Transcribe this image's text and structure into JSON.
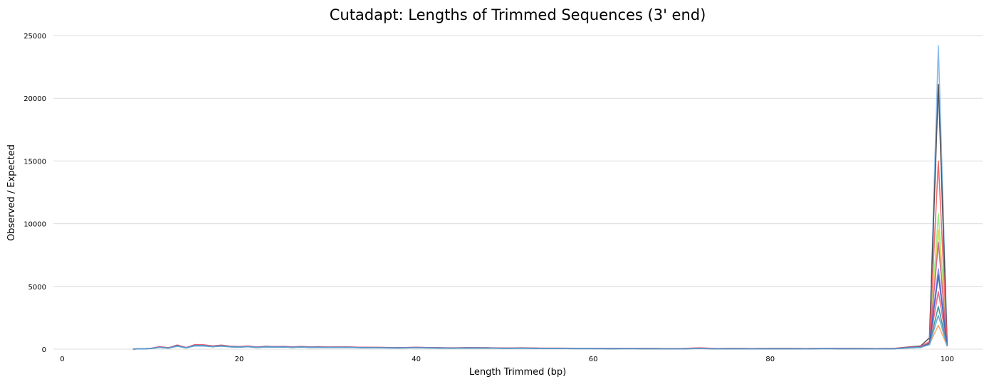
{
  "chart_data": {
    "type": "line",
    "title": "Cutadapt: Lengths of Trimmed Sequences (3' end)",
    "xlabel": "Length Trimmed (bp)",
    "ylabel": "Observed / Expected",
    "xlim": [
      -1,
      104
    ],
    "ylim": [
      0,
      25000
    ],
    "x_ticks": [
      0,
      20,
      40,
      60,
      80,
      100
    ],
    "y_ticks": [
      0,
      5000,
      10000,
      15000,
      20000,
      25000
    ],
    "grid": "horizontal",
    "x": [
      8,
      9,
      10,
      11,
      12,
      13,
      14,
      15,
      16,
      17,
      18,
      19,
      20,
      21,
      22,
      23,
      24,
      25,
      26,
      27,
      28,
      29,
      30,
      32,
      34,
      36,
      38,
      40,
      42,
      44,
      46,
      48,
      50,
      52,
      54,
      56,
      58,
      60,
      62,
      64,
      66,
      68,
      70,
      72,
      74,
      76,
      78,
      80,
      82,
      84,
      86,
      88,
      90,
      92,
      94,
      96,
      97,
      98,
      99,
      100
    ],
    "series": [
      {
        "color": "#7cb5ec",
        "values": [
          10,
          30,
          60,
          150,
          90,
          220,
          120,
          250,
          240,
          200,
          230,
          180,
          170,
          200,
          140,
          180,
          160,
          170,
          140,
          160,
          140,
          150,
          130,
          140,
          120,
          110,
          100,
          120,
          100,
          80,
          100,
          90,
          70,
          80,
          60,
          60,
          50,
          50,
          40,
          50,
          40,
          40,
          30,
          60,
          30,
          40,
          30,
          40,
          40,
          30,
          50,
          40,
          40,
          30,
          40,
          150,
          180,
          500,
          24200,
          300
        ]
      },
      {
        "color": "#434348",
        "values": [
          10,
          30,
          60,
          180,
          100,
          300,
          120,
          350,
          330,
          250,
          300,
          220,
          200,
          240,
          160,
          220,
          190,
          210,
          170,
          200,
          170,
          180,
          160,
          170,
          140,
          130,
          110,
          140,
          110,
          90,
          110,
          100,
          80,
          90,
          70,
          70,
          60,
          60,
          50,
          60,
          50,
          40,
          40,
          90,
          40,
          50,
          40,
          50,
          50,
          40,
          60,
          50,
          50,
          40,
          50,
          200,
          250,
          900,
          21100,
          350
        ]
      },
      {
        "color": "#f7a35c",
        "values": [
          10,
          25,
          50,
          160,
          90,
          320,
          110,
          340,
          360,
          220,
          330,
          200,
          190,
          230,
          150,
          210,
          180,
          200,
          160,
          220,
          160,
          190,
          150,
          160,
          130,
          120,
          100,
          130,
          100,
          80,
          100,
          90,
          70,
          80,
          60,
          60,
          50,
          50,
          40,
          50,
          40,
          40,
          30,
          60,
          30,
          40,
          30,
          40,
          40,
          30,
          50,
          40,
          40,
          30,
          40,
          120,
          150,
          400,
          1900,
          250
        ]
      },
      {
        "color": "#90ed7d",
        "values": [
          10,
          25,
          50,
          150,
          80,
          280,
          100,
          300,
          300,
          200,
          280,
          190,
          170,
          210,
          140,
          190,
          170,
          180,
          150,
          180,
          150,
          170,
          140,
          150,
          120,
          110,
          100,
          120,
          100,
          80,
          100,
          90,
          70,
          80,
          60,
          60,
          50,
          50,
          40,
          50,
          40,
          40,
          30,
          60,
          30,
          40,
          30,
          40,
          40,
          30,
          50,
          40,
          40,
          30,
          40,
          130,
          160,
          450,
          10800,
          260
        ]
      },
      {
        "color": "#e4d354",
        "values": [
          10,
          25,
          50,
          150,
          80,
          270,
          100,
          290,
          290,
          200,
          270,
          190,
          170,
          200,
          140,
          190,
          170,
          180,
          150,
          180,
          150,
          160,
          140,
          150,
          120,
          110,
          100,
          120,
          100,
          80,
          100,
          90,
          70,
          80,
          60,
          60,
          50,
          50,
          40,
          50,
          40,
          40,
          30,
          60,
          30,
          40,
          30,
          40,
          40,
          30,
          50,
          40,
          40,
          30,
          40,
          130,
          160,
          430,
          9500,
          250
        ]
      },
      {
        "color": "#f45b5b",
        "values": [
          10,
          30,
          60,
          200,
          110,
          330,
          130,
          360,
          340,
          260,
          320,
          230,
          210,
          250,
          170,
          230,
          200,
          220,
          180,
          210,
          180,
          190,
          170,
          180,
          150,
          140,
          120,
          150,
          120,
          100,
          120,
          110,
          90,
          100,
          80,
          80,
          70,
          70,
          60,
          70,
          60,
          50,
          50,
          100,
          50,
          60,
          50,
          60,
          60,
          50,
          70,
          60,
          60,
          50,
          60,
          170,
          210,
          600,
          15000,
          320
        ]
      },
      {
        "color": "#f15c80",
        "values": [
          10,
          28,
          55,
          170,
          95,
          300,
          115,
          320,
          310,
          230,
          290,
          210,
          190,
          220,
          150,
          200,
          180,
          190,
          160,
          190,
          160,
          170,
          150,
          160,
          130,
          120,
          100,
          130,
          100,
          90,
          100,
          90,
          80,
          90,
          70,
          70,
          60,
          60,
          50,
          60,
          50,
          40,
          40,
          80,
          40,
          50,
          40,
          50,
          50,
          40,
          60,
          50,
          50,
          40,
          50,
          140,
          170,
          480,
          4600,
          280
        ]
      },
      {
        "color": "#2b908f",
        "values": [
          10,
          25,
          50,
          140,
          80,
          260,
          100,
          280,
          280,
          190,
          260,
          180,
          160,
          190,
          130,
          180,
          160,
          170,
          140,
          170,
          140,
          150,
          130,
          140,
          110,
          100,
          90,
          110,
          90,
          70,
          90,
          80,
          60,
          70,
          50,
          50,
          40,
          40,
          30,
          40,
          30,
          30,
          20,
          50,
          20,
          30,
          20,
          30,
          30,
          20,
          40,
          30,
          30,
          20,
          30,
          110,
          140,
          380,
          3400,
          240
        ]
      },
      {
        "color": "#8085e9",
        "values": [
          10,
          25,
          50,
          150,
          85,
          280,
          105,
          300,
          300,
          210,
          280,
          200,
          180,
          210,
          150,
          200,
          180,
          190,
          160,
          190,
          160,
          170,
          150,
          160,
          130,
          120,
          100,
          130,
          100,
          80,
          100,
          90,
          70,
          80,
          60,
          60,
          50,
          50,
          40,
          50,
          40,
          40,
          30,
          60,
          30,
          40,
          30,
          40,
          40,
          30,
          50,
          40,
          40,
          30,
          40,
          130,
          160,
          440,
          6400,
          260
        ]
      },
      {
        "color": "#d35c8a",
        "values": [
          10,
          28,
          55,
          180,
          100,
          310,
          120,
          330,
          320,
          240,
          300,
          220,
          200,
          230,
          160,
          210,
          190,
          200,
          170,
          200,
          170,
          180,
          160,
          170,
          140,
          130,
          110,
          140,
          110,
          90,
          110,
          100,
          80,
          90,
          70,
          70,
          60,
          60,
          50,
          60,
          50,
          40,
          40,
          80,
          40,
          50,
          40,
          50,
          50,
          40,
          60,
          50,
          50,
          40,
          50,
          150,
          180,
          520,
          8500,
          290
        ]
      },
      {
        "color": "#3d5fb8",
        "values": [
          10,
          25,
          50,
          150,
          85,
          270,
          100,
          290,
          290,
          200,
          270,
          190,
          170,
          200,
          140,
          190,
          170,
          180,
          150,
          180,
          150,
          160,
          140,
          150,
          120,
          110,
          100,
          120,
          100,
          80,
          100,
          90,
          70,
          80,
          60,
          60,
          50,
          50,
          40,
          50,
          40,
          40,
          30,
          60,
          30,
          40,
          30,
          40,
          40,
          30,
          50,
          40,
          40,
          30,
          40,
          130,
          160,
          450,
          5900,
          260
        ]
      },
      {
        "color": "#5fa8d3",
        "values": [
          10,
          25,
          50,
          140,
          80,
          250,
          100,
          270,
          270,
          190,
          250,
          180,
          160,
          190,
          130,
          180,
          160,
          170,
          140,
          170,
          140,
          150,
          130,
          140,
          110,
          100,
          90,
          110,
          90,
          70,
          90,
          80,
          60,
          70,
          50,
          50,
          40,
          40,
          30,
          40,
          30,
          30,
          20,
          50,
          20,
          30,
          20,
          30,
          30,
          20,
          40,
          30,
          30,
          20,
          30,
          110,
          140,
          360,
          2700,
          230
        ]
      }
    ]
  }
}
